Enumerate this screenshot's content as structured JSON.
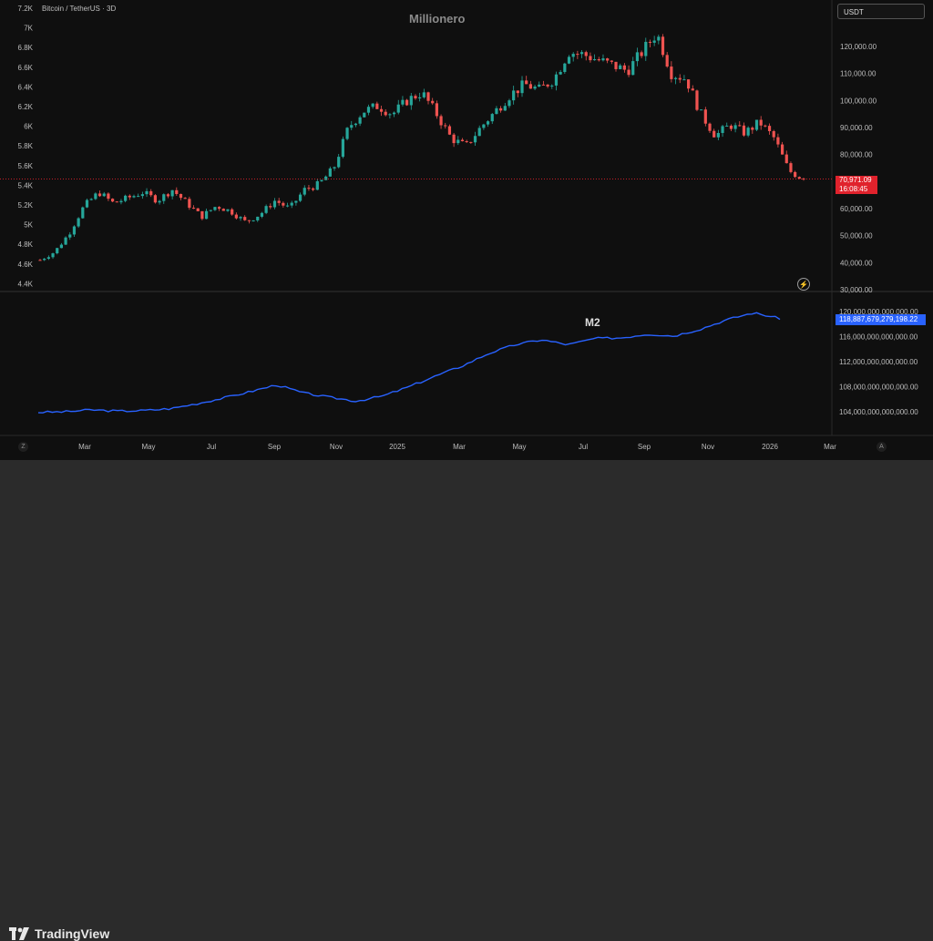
{
  "chart_data": [
    {
      "type": "candlestick",
      "title": "Millionero",
      "symbol": "Bitcoin / TetherUS · 3D",
      "currency": "USDT",
      "right_axis": [
        "120,000.00",
        "110,000.00",
        "100,000.00",
        "90,000.00",
        "80,000.00",
        "60,000.00",
        "50,000.00",
        "40,000.00",
        "30,000.00"
      ],
      "left_axis": [
        "7.2K",
        "7K",
        "6.8K",
        "6.6K",
        "6.4K",
        "6.2K",
        "6K",
        "5.8K",
        "5.6K",
        "5.4K",
        "5.2K",
        "5K",
        "4.8K",
        "4.6K",
        "4.4K"
      ],
      "last_price": "70,971.09",
      "countdown": "16:08:45",
      "x_labels": [
        "Mar",
        "May",
        "Jul",
        "Sep",
        "Nov",
        "2025",
        "Mar",
        "May",
        "Jul",
        "Sep",
        "Nov",
        "2026",
        "Mar"
      ],
      "series": [
        {
          "name": "BTCUSDT close (approx.)",
          "values": [
            41000,
            44000,
            51000,
            61000,
            66000,
            62000,
            64000,
            66000,
            63000,
            67000,
            62000,
            57000,
            61000,
            59000,
            55000,
            58000,
            63000,
            60000,
            67000,
            69000,
            75000,
            90000,
            96000,
            98000,
            95000,
            100000,
            103000,
            95000,
            86000,
            83000,
            90000,
            96000,
            102000,
            106000,
            104000,
            108000,
            118000,
            117000,
            115000,
            113000,
            111000,
            118000,
            125000,
            110000,
            108000,
            95000,
            87000,
            91000,
            88000,
            92000,
            86000,
            74000,
            70971
          ]
        }
      ]
    },
    {
      "type": "line",
      "title": "M2",
      "axis_ticks": [
        "120,000,000,000,000.00",
        "116,000,000,000,000.00",
        "112,000,000,000,000.00",
        "108,000,000,000,000.00",
        "104,000,000,000,000.00"
      ],
      "last_value": "118,887,679,279,198.22",
      "series": [
        {
          "name": "M2",
          "values": [
            103900000000000,
            104000000000000,
            104300000000000,
            104100000000000,
            104200000000000,
            104500000000000,
            105300000000000,
            106200000000000,
            107200000000000,
            108300000000000,
            107000000000000,
            106300000000000,
            105700000000000,
            106500000000000,
            108000000000000,
            109700000000000,
            111300000000000,
            113300000000000,
            114700000000000,
            115500000000000,
            114700000000000,
            115700000000000,
            115800000000000,
            116400000000000,
            116100000000000,
            117200000000000,
            118700000000000,
            119800000000000,
            118900000000000
          ]
        }
      ]
    }
  ],
  "footer": {
    "brand": "TradingView"
  },
  "icons": {
    "bolt": "⚡",
    "goto_start": "Z",
    "goto_end": "A"
  }
}
